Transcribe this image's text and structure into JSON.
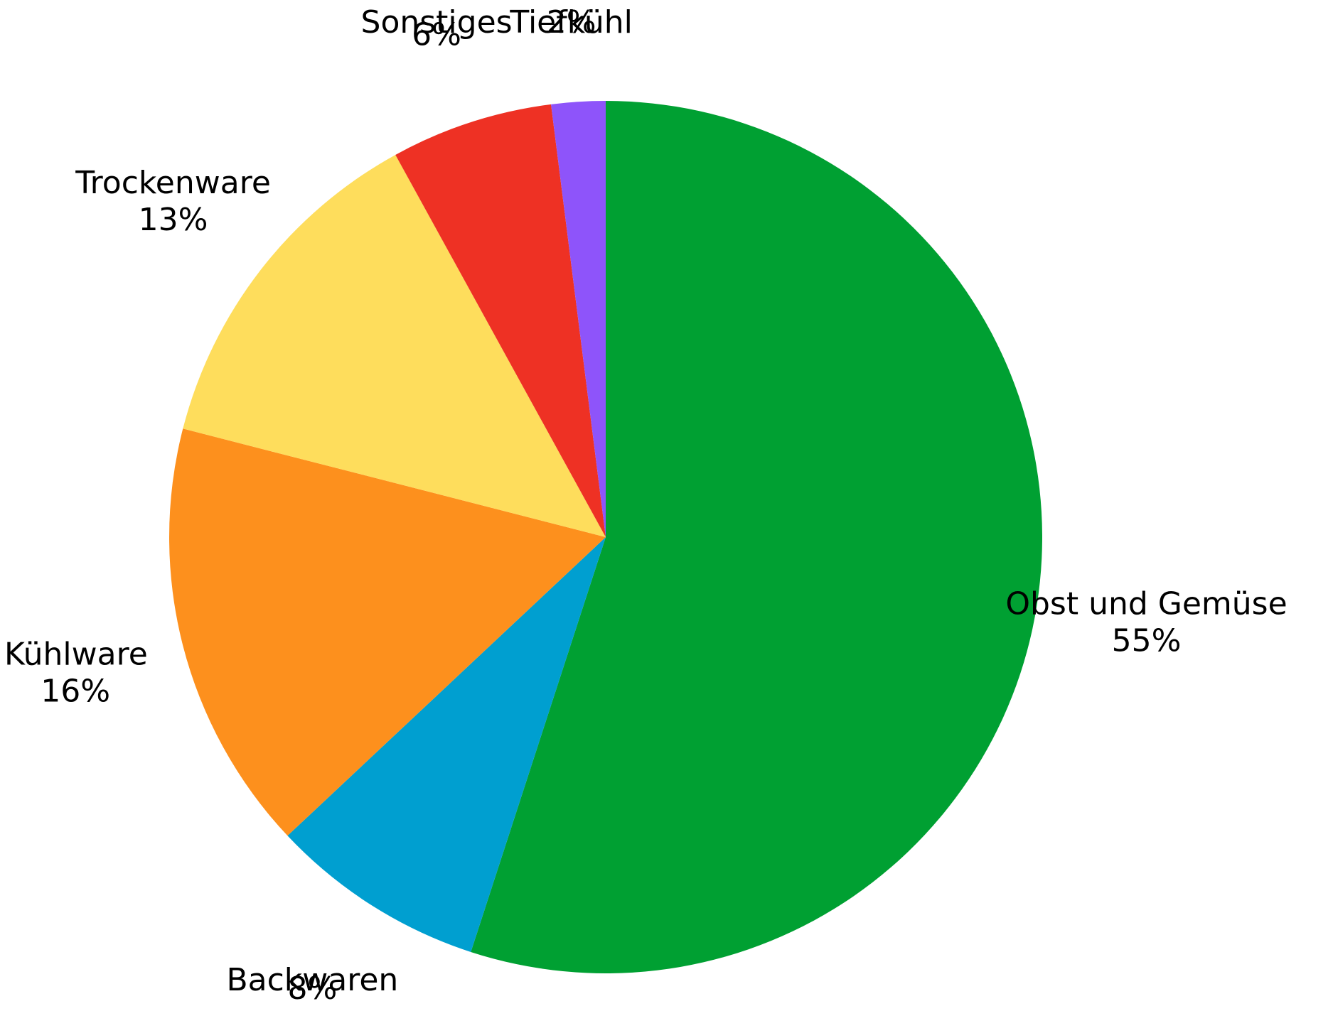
{
  "chart_data": {
    "type": "pie",
    "start_angle": "12 o'clock",
    "direction": "clockwise",
    "slices": [
      {
        "name": "Obst und Gemüse",
        "value": 55,
        "value_label": "55%",
        "color": "#00A032"
      },
      {
        "name": "Backwaren",
        "value": 8,
        "value_label": "8%",
        "color": "#009FD0"
      },
      {
        "name": "Kühlware",
        "value": 16,
        "value_label": "16%",
        "color": "#FD901D"
      },
      {
        "name": "Trockenware",
        "value": 13,
        "value_label": "13%",
        "color": "#FEDD5C"
      },
      {
        "name": "Sonstiges",
        "value": 6,
        "value_label": "6%",
        "color": "#EE3124"
      },
      {
        "name": "Tiefkühl",
        "value": 2,
        "value_label": "2%",
        "color": "#8E54FA"
      }
    ]
  }
}
